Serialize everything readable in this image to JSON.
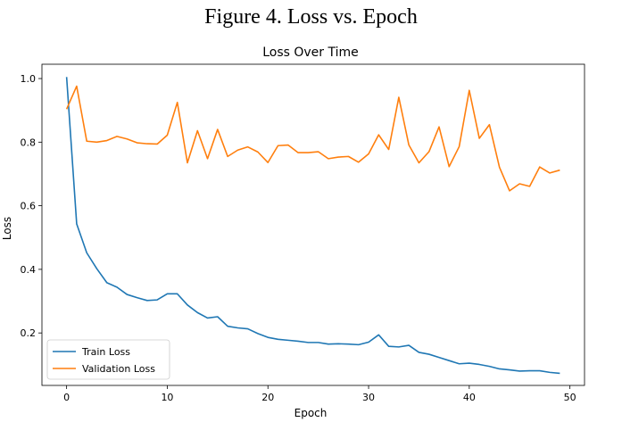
{
  "figure_caption": "Figure 4. Loss vs. Epoch",
  "chart_data": {
    "type": "line",
    "title": "Loss Over Time",
    "xlabel": "Epoch",
    "ylabel": "Loss",
    "xlim": [
      -2.45,
      51.45
    ],
    "ylim": [
      0.035,
      1.045
    ],
    "xticks": [
      0,
      10,
      20,
      30,
      40,
      50
    ],
    "yticks": [
      0.2,
      0.4,
      0.6,
      0.8,
      1.0
    ],
    "x": [
      0,
      1,
      2,
      3,
      4,
      5,
      6,
      7,
      8,
      9,
      10,
      11,
      12,
      13,
      14,
      15,
      16,
      17,
      18,
      19,
      20,
      21,
      22,
      23,
      24,
      25,
      26,
      27,
      28,
      29,
      30,
      31,
      32,
      33,
      34,
      35,
      36,
      37,
      38,
      39,
      40,
      41,
      42,
      43,
      44,
      45,
      46,
      47,
      48,
      49
    ],
    "series": [
      {
        "name": "Train Loss",
        "color": "#1f77b4",
        "values": [
          1.005,
          0.543,
          0.452,
          0.402,
          0.358,
          0.344,
          0.321,
          0.311,
          0.302,
          0.304,
          0.323,
          0.323,
          0.288,
          0.264,
          0.247,
          0.251,
          0.221,
          0.216,
          0.213,
          0.198,
          0.186,
          0.18,
          0.177,
          0.174,
          0.17,
          0.17,
          0.165,
          0.166,
          0.165,
          0.163,
          0.171,
          0.194,
          0.158,
          0.156,
          0.161,
          0.139,
          0.133,
          0.123,
          0.113,
          0.103,
          0.105,
          0.101,
          0.095,
          0.087,
          0.084,
          0.08,
          0.081,
          0.081,
          0.076,
          0.073
        ]
      },
      {
        "name": "Validation Loss",
        "color": "#ff7f0e",
        "values": [
          0.904,
          0.976,
          0.803,
          0.8,
          0.805,
          0.818,
          0.81,
          0.798,
          0.795,
          0.794,
          0.822,
          0.925,
          0.735,
          0.836,
          0.748,
          0.84,
          0.755,
          0.775,
          0.785,
          0.769,
          0.736,
          0.789,
          0.791,
          0.767,
          0.767,
          0.77,
          0.748,
          0.753,
          0.755,
          0.737,
          0.763,
          0.823,
          0.777,
          0.941,
          0.791,
          0.735,
          0.77,
          0.848,
          0.723,
          0.786,
          0.963,
          0.812,
          0.855,
          0.721,
          0.647,
          0.669,
          0.661,
          0.722,
          0.703,
          0.712
        ]
      }
    ],
    "legend_position": "lower-left",
    "grid": false
  }
}
